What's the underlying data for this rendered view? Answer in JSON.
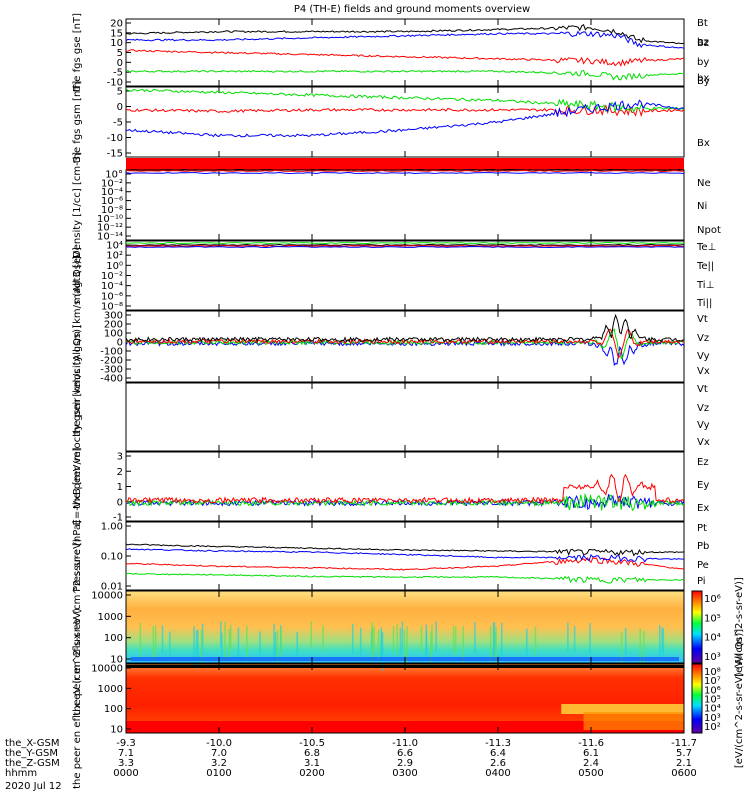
{
  "title": "P4 (TH-E) fields and ground moments overview",
  "date_label": "2020 Jul 12",
  "colors": {
    "black": "#000000",
    "red": "#ff0000",
    "green": "#00dd00",
    "blue": "#0000ff"
  },
  "orbit": {
    "labels": [
      "the_X-GSM",
      "the_Y-GSM",
      "the_Z-GSM",
      "hhmm"
    ],
    "columns": [
      [
        "-9.3",
        "7.1",
        "3.3",
        "0000"
      ],
      [
        "-10.0",
        "7.0",
        "3.2",
        "0100"
      ],
      [
        "-10.5",
        "6.8",
        "3.1",
        "0200"
      ],
      [
        "-11.0",
        "6.6",
        "2.9",
        "0300"
      ],
      [
        "-11.3",
        "6.4",
        "2.6",
        "0400"
      ],
      [
        "-11.6",
        "6.1",
        "2.4",
        "0500"
      ],
      [
        "-11.7",
        "5.7",
        "2.1",
        "0600"
      ]
    ]
  },
  "chart_data": [
    {
      "type": "line",
      "ylabel": "the fgs gse [nT]",
      "ylim": [
        -10,
        22
      ],
      "ticks": [
        "20",
        "15",
        "10",
        "5",
        "0",
        "-5",
        "-10"
      ],
      "series": [
        {
          "name": "Bt",
          "color": "#000000",
          "x": [
            0,
            1,
            2,
            3,
            4,
            5,
            5.3,
            5.5,
            6
          ],
          "y": [
            15,
            16,
            16,
            16,
            17,
            18,
            16,
            12,
            10
          ]
        },
        {
          "name": "bz",
          "color": "#ff0000",
          "x": [
            0,
            1,
            2,
            3,
            4,
            5,
            5.3,
            5.5,
            6
          ],
          "y": [
            7,
            6,
            5,
            4,
            3,
            2,
            1,
            2,
            3
          ]
        },
        {
          "name": "by",
          "color": "#00dd00",
          "x": [
            0,
            1,
            2,
            3,
            4,
            5,
            5.3,
            5.5,
            6
          ],
          "y": [
            -3,
            -3,
            -3,
            -3,
            -3,
            -4,
            -6,
            -5,
            -4
          ]
        },
        {
          "name": "bx",
          "color": "#0000ff",
          "x": [
            0,
            1,
            2,
            3,
            4,
            5,
            5.3,
            5.5,
            6
          ],
          "y": [
            12,
            12,
            13,
            14,
            15,
            15,
            14,
            10,
            8
          ]
        }
      ]
    },
    {
      "type": "line",
      "ylabel": "the fgs gsm [nT]",
      "ylim": [
        -18,
        8
      ],
      "ticks": [
        "5",
        "0",
        "-5",
        "-10",
        "-15"
      ],
      "series": [
        {
          "name": "Bz",
          "color": "#ff0000",
          "x": [
            0,
            1,
            2,
            3,
            4,
            5,
            5.5,
            6
          ],
          "y": [
            -0.5,
            -1,
            -0.5,
            -0.5,
            -0.5,
            -0.5,
            -1,
            -0.5
          ]
        },
        {
          "name": "By",
          "color": "#00dd00",
          "x": [
            0,
            1,
            2,
            3,
            4,
            5,
            5.5,
            6
          ],
          "y": [
            7,
            6,
            5,
            4,
            3,
            1,
            0,
            0
          ]
        },
        {
          "name": "Bx",
          "color": "#0000ff",
          "x": [
            0,
            1,
            2,
            3,
            4,
            5,
            5.5,
            6
          ],
          "y": [
            -8,
            -10,
            -10,
            -8,
            -5,
            0,
            2,
            0
          ]
        }
      ]
    },
    {
      "type": "line",
      "ylabel": "Density [1/cc] [cm-3]",
      "log": true,
      "ylim": [
        1e-14,
        1.0
      ],
      "ticks": [
        "10°",
        "10⁻²",
        "10⁻⁴",
        "10⁻⁶",
        "10⁻⁸",
        "10⁻¹⁰",
        "10⁻¹²",
        "10⁻¹⁴"
      ],
      "series": [
        {
          "name": "Ne",
          "color": "#ff0000"
        },
        {
          "name": "Ni",
          "color": "#000000"
        },
        {
          "name": "Npot",
          "color": "#0000ff"
        }
      ]
    },
    {
      "type": "line",
      "ylabel": "magt3 [eV]",
      "log": true,
      "ylim": [
        1e-08,
        10000.0
      ],
      "ticks": [
        "10⁴",
        "10²",
        "10⁰",
        "10⁻²",
        "10⁻⁴",
        "10⁻⁶",
        "10⁻⁸"
      ],
      "series": [
        {
          "name": "Te⊥",
          "color": "#ff0000"
        },
        {
          "name": "Te||",
          "color": "#000000"
        },
        {
          "name": "Ti⊥",
          "color": "#0000ff"
        },
        {
          "name": "Ti||",
          "color": "#00dd00"
        }
      ]
    },
    {
      "type": "line",
      "ylabel": "the peir velocity gsm [km/s (All Qs)]",
      "ylim": [
        -400,
        300
      ],
      "ticks": [
        "300",
        "200",
        "100",
        "0",
        "-100",
        "-200",
        "-300",
        "-400"
      ],
      "series": [
        {
          "name": "Vt",
          "color": "#000000"
        },
        {
          "name": "Vz",
          "color": "#ff0000"
        },
        {
          "name": "Vy",
          "color": "#00dd00"
        },
        {
          "name": "Vx",
          "color": "#0000ff"
        }
      ]
    },
    {
      "type": "line",
      "ylabel": "the peer velocity gsm [km/s (All Qs)]",
      "ticks": [],
      "series": [
        {
          "name": "Vt",
          "color": "#000000"
        },
        {
          "name": "Vz",
          "color": "#ff0000"
        },
        {
          "name": "Vy",
          "color": "#00dd00"
        },
        {
          "name": "Vx",
          "color": "#0000ff"
        }
      ]
    },
    {
      "type": "line",
      "ylabel": "E=-VxB [mV/m]",
      "ylim": [
        -1,
        3
      ],
      "ticks": [
        "3",
        "2",
        "1",
        "0",
        "-1"
      ],
      "series": [
        {
          "name": "Ez",
          "color": "#ff0000"
        },
        {
          "name": "Ey",
          "color": "#00dd00"
        },
        {
          "name": "Ex",
          "color": "#0000ff"
        }
      ]
    },
    {
      "type": "line",
      "ylabel": "Pressure [nPa]",
      "log": true,
      "ylim": [
        0.01,
        1.0
      ],
      "ticks": [
        "1.00",
        "0.10",
        "0.01"
      ],
      "series": [
        {
          "name": "Pt",
          "color": "#000000",
          "x": [
            0,
            1,
            2,
            3,
            4,
            5,
            6
          ],
          "y": [
            0.22,
            0.19,
            0.17,
            0.15,
            0.14,
            0.13,
            0.13
          ]
        },
        {
          "name": "Pb",
          "color": "#ff0000",
          "x": [
            0,
            1,
            2,
            3,
            4,
            5,
            6
          ],
          "y": [
            0.06,
            0.05,
            0.045,
            0.04,
            0.05,
            0.08,
            0.04
          ]
        },
        {
          "name": "Pe",
          "color": "#00dd00",
          "x": [
            0,
            1,
            2,
            3,
            4,
            5,
            6
          ],
          "y": [
            0.03,
            0.028,
            0.025,
            0.024,
            0.024,
            0.02,
            0.02
          ]
        },
        {
          "name": "Pi",
          "color": "#0000ff",
          "x": [
            0,
            1,
            2,
            3,
            4,
            5,
            6
          ],
          "y": [
            0.16,
            0.14,
            0.13,
            0.11,
            0.09,
            0.09,
            0.08
          ]
        }
      ]
    },
    {
      "type": "heatmap",
      "ylabel": "the peir en eflux eV (cm^2-s-sr-eV)",
      "yticks": [
        "10000",
        "1000",
        "100",
        "10"
      ]
    },
    {
      "type": "heatmap",
      "ylabel": "the peer en eflux eV (cm^2-s-sr-eV)",
      "yticks": [
        "10000",
        "1000",
        "100",
        "10"
      ]
    }
  ],
  "colorbar_upper": {
    "label": "[eV/(cm^2-s-sr-eV)]",
    "ticks": [
      "10⁶",
      "10⁵",
      "10⁴",
      "10³"
    ]
  },
  "colorbar_lower": {
    "label": "[eV/(cm^2-s-sr-eV) (All Qs)]",
    "ticks": [
      "10⁸",
      "10⁷",
      "10⁶",
      "10⁵",
      "10⁴",
      "10³",
      "10²"
    ]
  }
}
